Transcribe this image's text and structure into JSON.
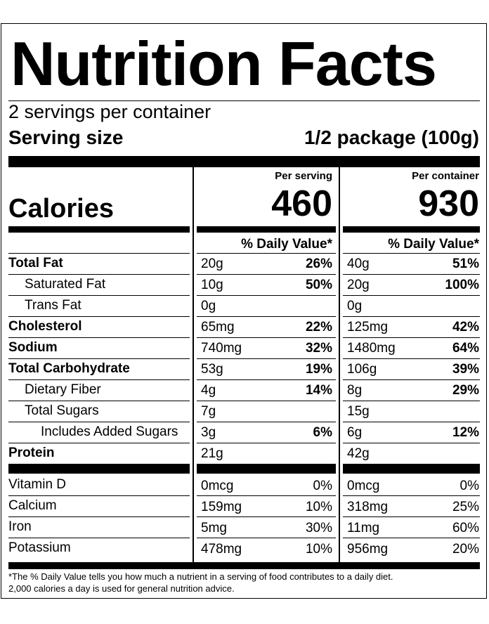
{
  "title": "Nutrition Facts",
  "servings_per_container": "2 servings per container",
  "serving_size": {
    "label": "Serving size",
    "value": "1/2 package (100g)"
  },
  "calories": {
    "label": "Calories",
    "per_serving_header": "Per serving",
    "per_container_header": "Per container",
    "per_serving": "460",
    "per_container": "930"
  },
  "daily_value_header": "% Daily Value*",
  "nutrients": [
    {
      "name": "Total Fat",
      "serving_amount": "20g",
      "serving_dv": "26%",
      "container_amount": "40g",
      "container_dv": "51%"
    },
    {
      "name": "Saturated Fat",
      "serving_amount": "10g",
      "serving_dv": "50%",
      "container_amount": "20g",
      "container_dv": "100%"
    },
    {
      "name": "Trans Fat",
      "serving_amount": "0g",
      "serving_dv": "",
      "container_amount": "0g",
      "container_dv": ""
    },
    {
      "name": "Cholesterol",
      "serving_amount": "65mg",
      "serving_dv": "22%",
      "container_amount": "125mg",
      "container_dv": "42%"
    },
    {
      "name": "Sodium",
      "serving_amount": "740mg",
      "serving_dv": "32%",
      "container_amount": "1480mg",
      "container_dv": "64%"
    },
    {
      "name": "Total Carbohydrate",
      "serving_amount": "53g",
      "serving_dv": "19%",
      "container_amount": "106g",
      "container_dv": "39%"
    },
    {
      "name": "Dietary Fiber",
      "serving_amount": "4g",
      "serving_dv": "14%",
      "container_amount": "8g",
      "container_dv": "29%"
    },
    {
      "name": "Total Sugars",
      "serving_amount": "7g",
      "serving_dv": "",
      "container_amount": "15g",
      "container_dv": ""
    },
    {
      "name": "Includes Added Sugars",
      "serving_amount": "3g",
      "serving_dv": "6%",
      "container_amount": "6g",
      "container_dv": "12%"
    },
    {
      "name": "Protein",
      "serving_amount": "21g",
      "serving_dv": "",
      "container_amount": "42g",
      "container_dv": ""
    }
  ],
  "vitamins": [
    {
      "name": "Vitamin D",
      "serving_amount": "0mcg",
      "serving_dv": "0%",
      "container_amount": "0mcg",
      "container_dv": "0%"
    },
    {
      "name": "Calcium",
      "serving_amount": "159mg",
      "serving_dv": "10%",
      "container_amount": "318mg",
      "container_dv": "25%"
    },
    {
      "name": "Iron",
      "serving_amount": "5mg",
      "serving_dv": "30%",
      "container_amount": "11mg",
      "container_dv": "60%"
    },
    {
      "name": "Potassium",
      "serving_amount": "478mg",
      "serving_dv": "10%",
      "container_amount": "956mg",
      "container_dv": "20%"
    }
  ],
  "footnote": {
    "line1": "*The % Daily Value tells you how much a nutrient in a serving of food contributes to a daily diet.",
    "line2": "2,000 calories a day is used for general nutrition advice."
  }
}
